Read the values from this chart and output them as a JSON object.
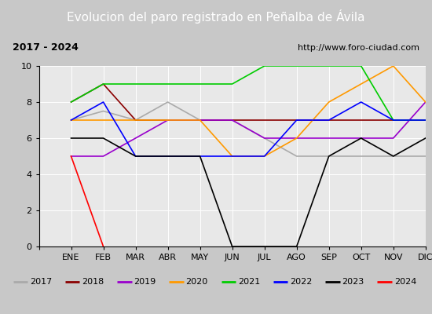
{
  "title": "Evolucion del paro registrado en Peñalba de Ávila",
  "subtitle_left": "2017 - 2024",
  "subtitle_right": "http://www.foro-ciudad.com",
  "months": [
    "ENE",
    "FEB",
    "MAR",
    "ABR",
    "MAY",
    "JUN",
    "JUL",
    "AGO",
    "SEP",
    "OCT",
    "NOV",
    "DIC"
  ],
  "series": {
    "2017": [
      7,
      7.5,
      7,
      8,
      7,
      7,
      6,
      5,
      5,
      5,
      5,
      5
    ],
    "2018": [
      8,
      9,
      7,
      7,
      7,
      7,
      7,
      7,
      7,
      7,
      7,
      7
    ],
    "2019": [
      5,
      5,
      6,
      7,
      7,
      7,
      6,
      6,
      6,
      6,
      6,
      8
    ],
    "2020": [
      7,
      7,
      7,
      7,
      7,
      5,
      5,
      6,
      8,
      9,
      10,
      8
    ],
    "2021": [
      8,
      9,
      9,
      9,
      9,
      9,
      10,
      10,
      10,
      10,
      7,
      7
    ],
    "2022": [
      7,
      8,
      5,
      5,
      5,
      5,
      5,
      7,
      7,
      8,
      7,
      7
    ],
    "2023": [
      6,
      6,
      5,
      5,
      5,
      0,
      0,
      0,
      5,
      6,
      5,
      6
    ],
    "2024": [
      5,
      0,
      null,
      null,
      null,
      null,
      null,
      null,
      null,
      null,
      null,
      null
    ]
  },
  "colors": {
    "2017": "#aaaaaa",
    "2018": "#8b0000",
    "2019": "#9900cc",
    "2020": "#ff9900",
    "2021": "#00cc00",
    "2022": "#0000ff",
    "2023": "#000000",
    "2024": "#ff0000"
  },
  "ylim": [
    0,
    10
  ],
  "yticks": [
    0,
    2,
    4,
    6,
    8,
    10
  ],
  "title_bg": "#4472c4",
  "title_color": "#ffffff",
  "header_bg": "#ffffff",
  "plot_bg": "#e8e8e8",
  "fig_bg": "#c8c8c8",
  "title_fontsize": 11,
  "header_fontsize": 9,
  "tick_fontsize": 8,
  "legend_fontsize": 8
}
